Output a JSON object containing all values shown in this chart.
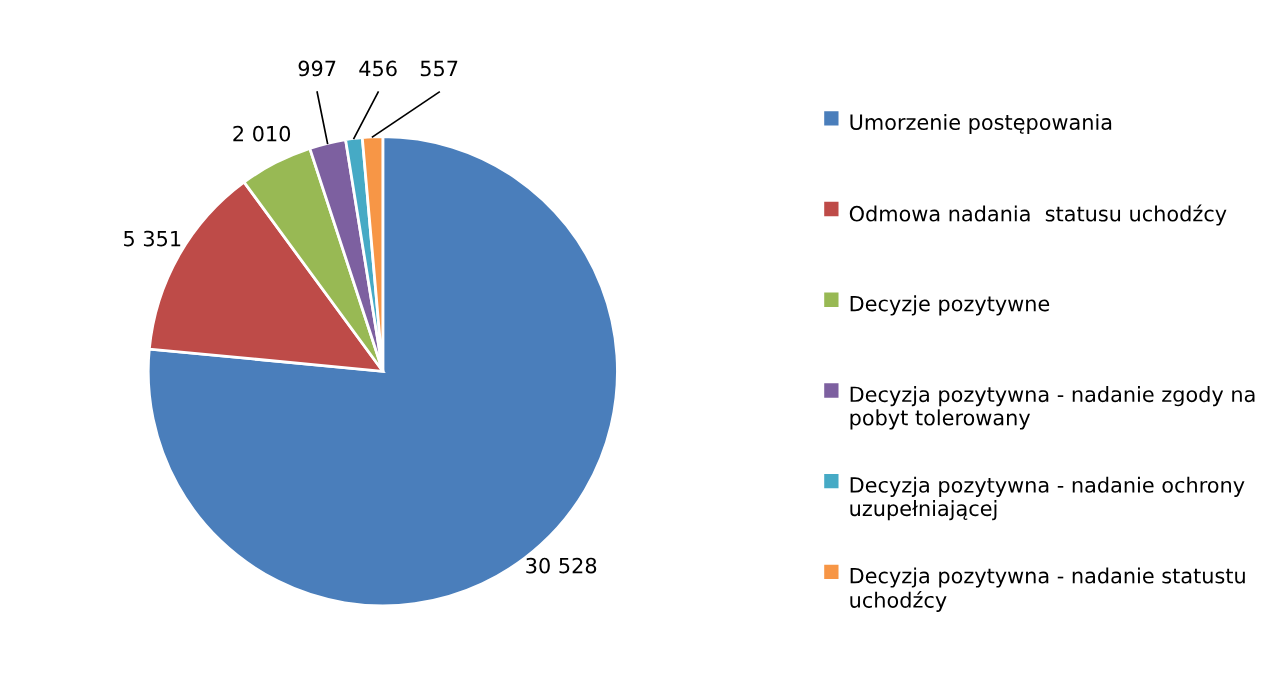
{
  "chart_data": {
    "type": "pie",
    "categories": [
      "Umorzenie postępowania",
      "Odmowa nadania  statusu uchodźcy",
      "Decyzje pozytywne",
      "Decyzja pozytywna - nadanie zgody na pobyt tolerowany",
      "Decyzja pozytywna - nadanie ochrony uzupełniającej",
      "Decyzja pozytywna - nadanie statustu uchodźcy"
    ],
    "values": [
      30528,
      5351,
      2010,
      997,
      456,
      557
    ],
    "value_labels": [
      "30 528",
      "5 351",
      "2 010",
      "997",
      "456",
      "557"
    ],
    "colors": [
      "#4a7ebb",
      "#be4b48",
      "#98b954",
      "#7d60a0",
      "#46aac5",
      "#f79646"
    ],
    "legend": "right"
  }
}
